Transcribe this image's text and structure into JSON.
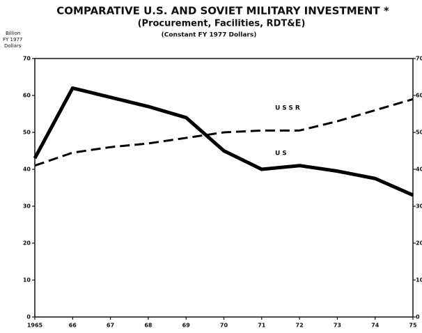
{
  "chart_data": {
    "type": "line",
    "title": "COMPARATIVE U.S. AND SOVIET MILITARY INVESTMENT *",
    "subtitle": "(Procurement, Facilities, RDT&E)",
    "note": "(Constant FY 1977 Dollars)",
    "y_axis_label": [
      "Billion",
      "FY 1977",
      "Dollars"
    ],
    "categories": [
      "1965",
      "66",
      "67",
      "68",
      "69",
      "70",
      "71",
      "72",
      "73",
      "74",
      "75"
    ],
    "series": [
      {
        "name": "US",
        "color": "#000000",
        "style": "solid",
        "values": [
          43,
          62,
          59.5,
          57,
          54,
          45,
          40,
          41,
          39.5,
          37.5,
          33
        ]
      },
      {
        "name": "USSR",
        "color": "#000000",
        "style": "dashed",
        "values": [
          41,
          44.5,
          46,
          47,
          48.5,
          50,
          50.5,
          50.5,
          53,
          56,
          59
        ]
      }
    ],
    "ylim": [
      0,
      70
    ],
    "yticks": [
      0,
      10,
      20,
      30,
      40,
      50,
      60,
      70
    ],
    "y2lim": [
      0,
      70
    ],
    "y2ticks": [
      0,
      10,
      20,
      30,
      40,
      50,
      60,
      70
    ]
  }
}
